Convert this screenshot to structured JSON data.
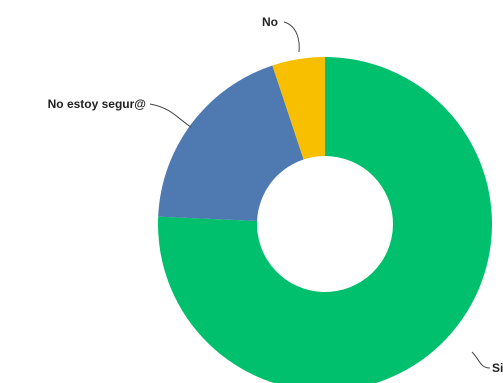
{
  "chart_data": {
    "type": "pie",
    "donut": true,
    "slices": [
      {
        "label": "Si",
        "value": 75.7,
        "color": "#00c06d"
      },
      {
        "label": "No estoy segur@",
        "value": 19.2,
        "color": "#4f79b1"
      },
      {
        "label": "No",
        "value": 5.1,
        "color": "#f8bf00"
      }
    ],
    "start_angle_deg": 0,
    "direction": "clockwise",
    "legend": "none"
  }
}
